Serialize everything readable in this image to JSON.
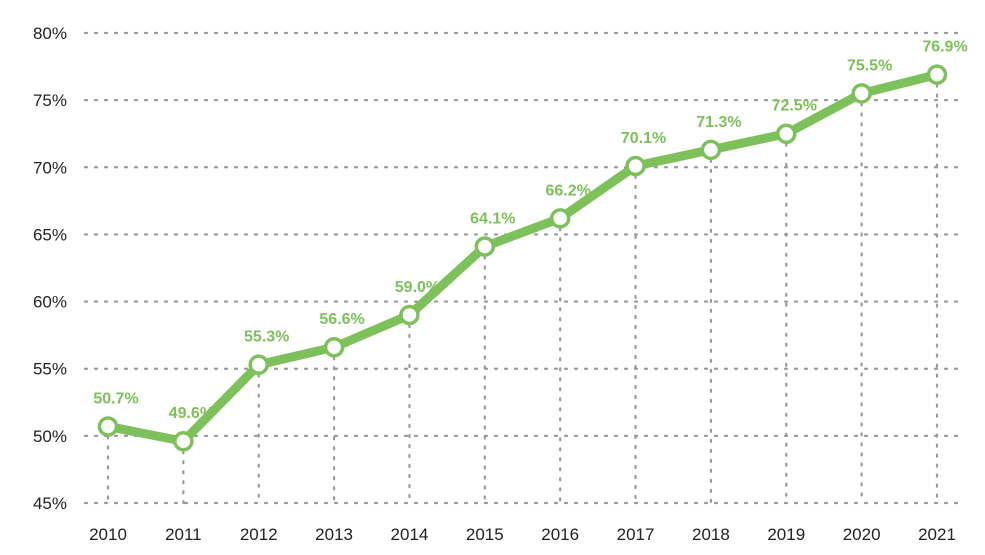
{
  "chart_data": {
    "type": "line",
    "title": "",
    "xlabel": "",
    "ylabel": "",
    "x": [
      "2010",
      "2011",
      "2012",
      "2013",
      "2014",
      "2015",
      "2016",
      "2017",
      "2018",
      "2019",
      "2020",
      "2021"
    ],
    "series": [
      {
        "values": [
          50.7,
          49.6,
          55.3,
          56.6,
          59.0,
          64.1,
          66.2,
          70.1,
          71.3,
          72.5,
          75.5,
          76.9
        ]
      }
    ],
    "data_labels": [
      "50.7%",
      "49.6%",
      "55.3%",
      "56.6%",
      "59.0%",
      "64.1%",
      "66.2%",
      "70.1%",
      "71.3%",
      "72.5%",
      "75.5%",
      "76.9%"
    ],
    "ylim": [
      45,
      80
    ],
    "yticks": [
      45,
      50,
      55,
      60,
      65,
      70,
      75,
      80
    ],
    "ytick_labels": [
      "45%",
      "50%",
      "55%",
      "60%",
      "65%",
      "70%",
      "75%",
      "80%"
    ],
    "grid": "dotted",
    "legend": "none",
    "colors": {
      "line": "#7cc159",
      "label": "#7cc159",
      "grid": "#999999",
      "marker_fill": "#ffffff",
      "text": "#222222"
    }
  }
}
